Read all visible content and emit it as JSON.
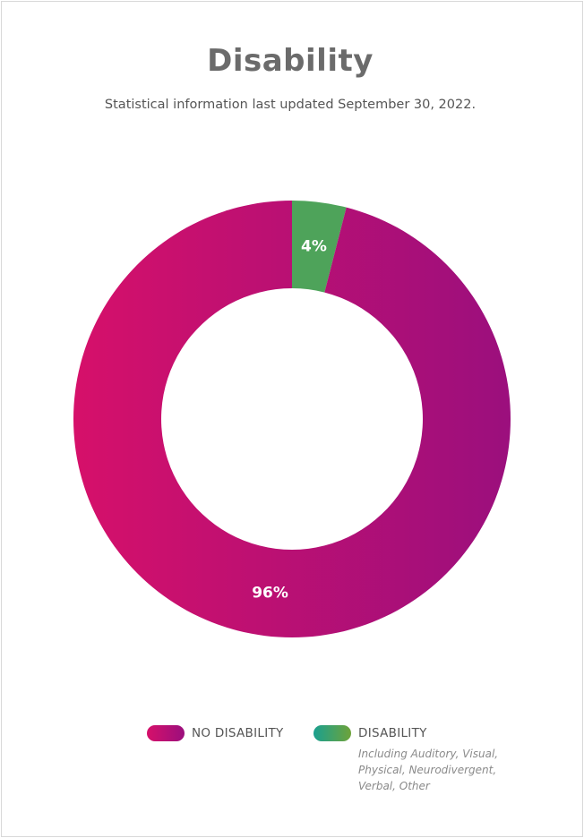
{
  "header": {
    "title": "Disability",
    "subtitle": "Statistical information last updated September 30, 2022."
  },
  "chart_data": {
    "type": "pie",
    "variant": "donut",
    "title": "Disability",
    "subtitle": "Statistical information last updated September 30, 2022.",
    "categories": [
      "NO DISABILITY",
      "DISABILITY"
    ],
    "values": [
      96,
      4
    ],
    "data_labels": [
      "96%",
      "4%"
    ],
    "unit": "%",
    "legend_placement": "bottom",
    "series": [
      {
        "name": "NO DISABILITY",
        "value": 96,
        "label": "96%",
        "gradient": [
          "#d6106a",
          "#9b0f7d"
        ]
      },
      {
        "name": "DISABILITY",
        "value": 4,
        "label": "4%",
        "gradient": [
          "#1aa08f",
          "#6ea33a"
        ],
        "fill": "#4ea35a"
      }
    ]
  },
  "legend": {
    "items": [
      {
        "label": "NO DISABILITY"
      },
      {
        "label": "DISABILITY"
      }
    ],
    "note": "Including Auditory, Visual, Physical, Neurodivergent, Verbal, Other"
  }
}
